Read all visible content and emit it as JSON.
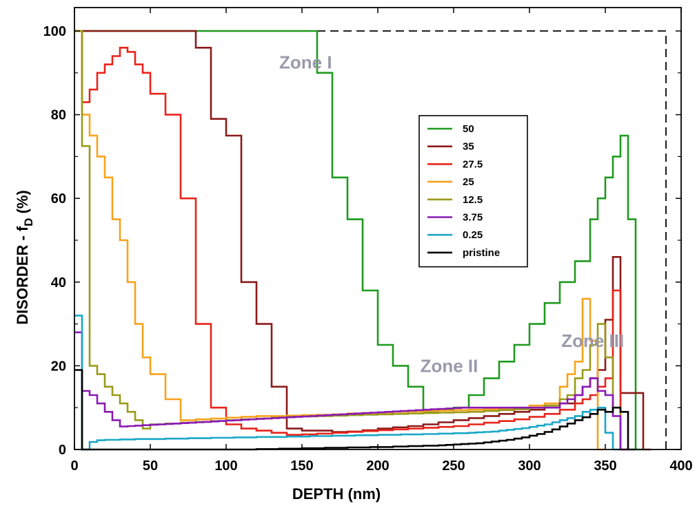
{
  "chart_data": {
    "type": "line",
    "title": "",
    "xlabel": "DEPTH (nm)",
    "ylabel": "DISORDER - f",
    "ylabel_sub": "D",
    "ylabel_suffix": " (%)",
    "xlim": [
      0,
      400
    ],
    "ylim": [
      0,
      100
    ],
    "xticks": [
      "0",
      "50",
      "100",
      "150",
      "200",
      "250",
      "300",
      "350",
      "400"
    ],
    "yticks": [
      "0",
      "20",
      "40",
      "60",
      "80",
      "100"
    ],
    "step_width": 5,
    "grid": false,
    "legend_position": "right-center",
    "annotations": [
      {
        "text": "Zone I",
        "x": 135,
        "y": 91,
        "color": "#9a9aac"
      },
      {
        "text": "Zone II",
        "x": 228,
        "y": 18.5,
        "color": "#9a9aac"
      },
      {
        "text": "Zone III",
        "x": 321,
        "y": 24.5,
        "color": "#9a9aac"
      }
    ],
    "reference_line": {
      "style": "dashed",
      "color": "#000000",
      "points": [
        [
          160,
          100
        ],
        [
          390,
          100
        ],
        [
          390,
          0
        ]
      ]
    },
    "series": [
      {
        "name": "50",
        "color": "#1e9a1e",
        "x_start": 0,
        "values": [
          100,
          100,
          100,
          100,
          100,
          100,
          100,
          100,
          100,
          100,
          100,
          100,
          100,
          100,
          100,
          100,
          100,
          100,
          100,
          100,
          100,
          100,
          100,
          100,
          100,
          100,
          100,
          100,
          100,
          100,
          100,
          100,
          90,
          90,
          65,
          65,
          55,
          55,
          38,
          38,
          25,
          25,
          20,
          20,
          15,
          15,
          9,
          9,
          9.5,
          9.5,
          10,
          10,
          13,
          13,
          17,
          17,
          21,
          21,
          25,
          25,
          30,
          30,
          35,
          35,
          40,
          40,
          45,
          45,
          55,
          60,
          65,
          70,
          75,
          55,
          0
        ]
      },
      {
        "name": "35",
        "color": "#8b1a1a",
        "x_start": 0,
        "values": [
          100,
          100,
          100,
          100,
          100,
          100,
          100,
          100,
          100,
          100,
          100,
          100,
          100,
          100,
          100,
          100,
          96,
          96,
          79,
          79,
          75,
          75,
          40,
          40,
          30,
          30,
          15,
          15,
          5,
          5,
          4.5,
          4.5,
          4.5,
          4.5,
          4.2,
          4.2,
          4.3,
          4.3,
          4.6,
          4.6,
          5,
          5,
          5.3,
          5.3,
          5.6,
          5.6,
          6,
          6,
          6.5,
          6.5,
          7,
          7,
          7.5,
          7.5,
          8,
          8,
          8.5,
          8.5,
          9,
          9,
          9.5,
          9.5,
          10,
          10,
          11,
          11,
          13,
          15,
          17,
          19,
          31,
          46,
          13.5,
          13.5,
          13.5,
          0
        ]
      },
      {
        "name": "27.5",
        "color": "#e8231a",
        "x_start": 0,
        "values": [
          100,
          83,
          86,
          90,
          92,
          94,
          96,
          95,
          92,
          90,
          85,
          85,
          80,
          80,
          60,
          60,
          30,
          30,
          10,
          10,
          6,
          6,
          5,
          5,
          4.5,
          4.5,
          4,
          4,
          3.5,
          3.5,
          3.6,
          3.6,
          3.8,
          3.8,
          4,
          4,
          4.2,
          4.2,
          4.4,
          4.4,
          4.6,
          4.6,
          4.8,
          4.8,
          5,
          5,
          5.2,
          5.2,
          5.4,
          5.4,
          5.6,
          5.6,
          6,
          6,
          6.4,
          6.4,
          6.8,
          6.8,
          7.2,
          7.2,
          7.8,
          7.8,
          8.5,
          8.5,
          9.5,
          9.5,
          11,
          12,
          13,
          15,
          17,
          38,
          0
        ]
      },
      {
        "name": "25",
        "color": "#f7a21b",
        "x_start": 0,
        "values": [
          100,
          80,
          75,
          70,
          65,
          55,
          50,
          40,
          30,
          22,
          18,
          18,
          12,
          12,
          7,
          7,
          7.2,
          7.2,
          7.4,
          7.4,
          7.6,
          7.6,
          7.8,
          7.8,
          8,
          8,
          8,
          8,
          8.1,
          8.1,
          8.2,
          8.2,
          8.3,
          8.3,
          8.4,
          8.4,
          8.6,
          8.6,
          8.7,
          8.7,
          8.8,
          8.8,
          9,
          9,
          9.1,
          9.1,
          9.2,
          9.2,
          9.3,
          9.3,
          9.4,
          9.4,
          9.5,
          9.5,
          9.6,
          9.6,
          9.8,
          9.8,
          10,
          10,
          10.5,
          10.5,
          11,
          11,
          15,
          18,
          21,
          36,
          26,
          0
        ]
      },
      {
        "name": "12.5",
        "color": "#9a9a1a",
        "x_start": 0,
        "values": [
          100,
          72.5,
          20,
          18,
          15,
          13,
          11,
          9,
          7,
          5,
          6,
          6,
          6.2,
          6.2,
          6.4,
          6.4,
          6.6,
          6.6,
          6.8,
          6.8,
          7,
          7,
          7.2,
          7.2,
          7.4,
          7.4,
          7.6,
          7.6,
          7.8,
          7.8,
          7.9,
          7.9,
          8,
          8,
          8.1,
          8.1,
          8.2,
          8.2,
          8.3,
          8.3,
          8.4,
          8.4,
          8.5,
          8.5,
          8.6,
          8.6,
          8.7,
          8.7,
          8.8,
          8.8,
          8.9,
          8.9,
          9,
          9,
          9.2,
          9.2,
          9.4,
          9.4,
          9.6,
          9.6,
          10,
          10,
          10.5,
          10.5,
          12,
          13,
          17,
          19,
          25,
          30,
          22,
          10,
          0
        ]
      },
      {
        "name": "3.75",
        "color": "#8a1ab4",
        "x_start": 0,
        "values": [
          28,
          14,
          13,
          11,
          9,
          7,
          5.5,
          5.6,
          5.7,
          5.8,
          5.9,
          6,
          6.1,
          6.2,
          6.3,
          6.4,
          6.5,
          6.6,
          6.7,
          6.8,
          6.9,
          7,
          7.1,
          7.2,
          7.3,
          7.4,
          7.5,
          7.6,
          7.7,
          7.8,
          7.9,
          8,
          8.1,
          8.2,
          8.3,
          8.4,
          8.5,
          8.6,
          8.7,
          8.8,
          8.9,
          9,
          9.1,
          9.2,
          9.3,
          9.4,
          9.5,
          9.6,
          9.7,
          9.8,
          9.9,
          10,
          10,
          10,
          10,
          10,
          10,
          10,
          10,
          10,
          10,
          10,
          10,
          10,
          11,
          12,
          13,
          15,
          17,
          14,
          13,
          8,
          0
        ]
      },
      {
        "name": "0.25",
        "color": "#1aa7c8",
        "x_start": 0,
        "values": [
          32,
          0,
          1.8,
          2.2,
          2.3,
          2.3,
          2.4,
          2.4,
          2.5,
          2.5,
          2.5,
          2.5,
          2.6,
          2.6,
          2.6,
          2.7,
          2.7,
          2.7,
          2.8,
          2.8,
          2.8,
          2.9,
          2.9,
          2.9,
          3,
          3,
          3,
          3,
          3.1,
          3.1,
          3.1,
          3.2,
          3.2,
          3.2,
          3.3,
          3.3,
          3.3,
          3.4,
          3.4,
          3.4,
          3.5,
          3.5,
          3.5,
          3.6,
          3.6,
          3.6,
          3.7,
          3.7,
          3.8,
          3.8,
          3.9,
          3.9,
          4,
          4.1,
          4.2,
          4.3,
          4.5,
          4.7,
          4.9,
          5.1,
          5.4,
          5.7,
          6,
          6.5,
          7,
          7.5,
          8,
          9,
          9.5,
          10,
          4,
          0
        ]
      },
      {
        "name": "pristine",
        "color": "#000000",
        "x_start": 0,
        "values": [
          19,
          0,
          0,
          0,
          0,
          0,
          0,
          0,
          0,
          0,
          0,
          0,
          0,
          0,
          0,
          0,
          0,
          0,
          0,
          0,
          0,
          0,
          0,
          0,
          0.1,
          0.1,
          0.1,
          0.2,
          0.2,
          0.2,
          0.3,
          0.3,
          0.3,
          0.4,
          0.4,
          0.4,
          0.5,
          0.5,
          0.5,
          0.6,
          0.6,
          0.6,
          0.7,
          0.7,
          0.8,
          0.8,
          0.9,
          0.9,
          1,
          1.1,
          1.2,
          1.3,
          1.4,
          1.5,
          1.7,
          1.9,
          2.1,
          2.3,
          2.6,
          2.9,
          3.3,
          3.7,
          4.2,
          4.8,
          5.5,
          6.2,
          7,
          7.7,
          8.5,
          9.5,
          9,
          10,
          9,
          0
        ]
      }
    ]
  }
}
